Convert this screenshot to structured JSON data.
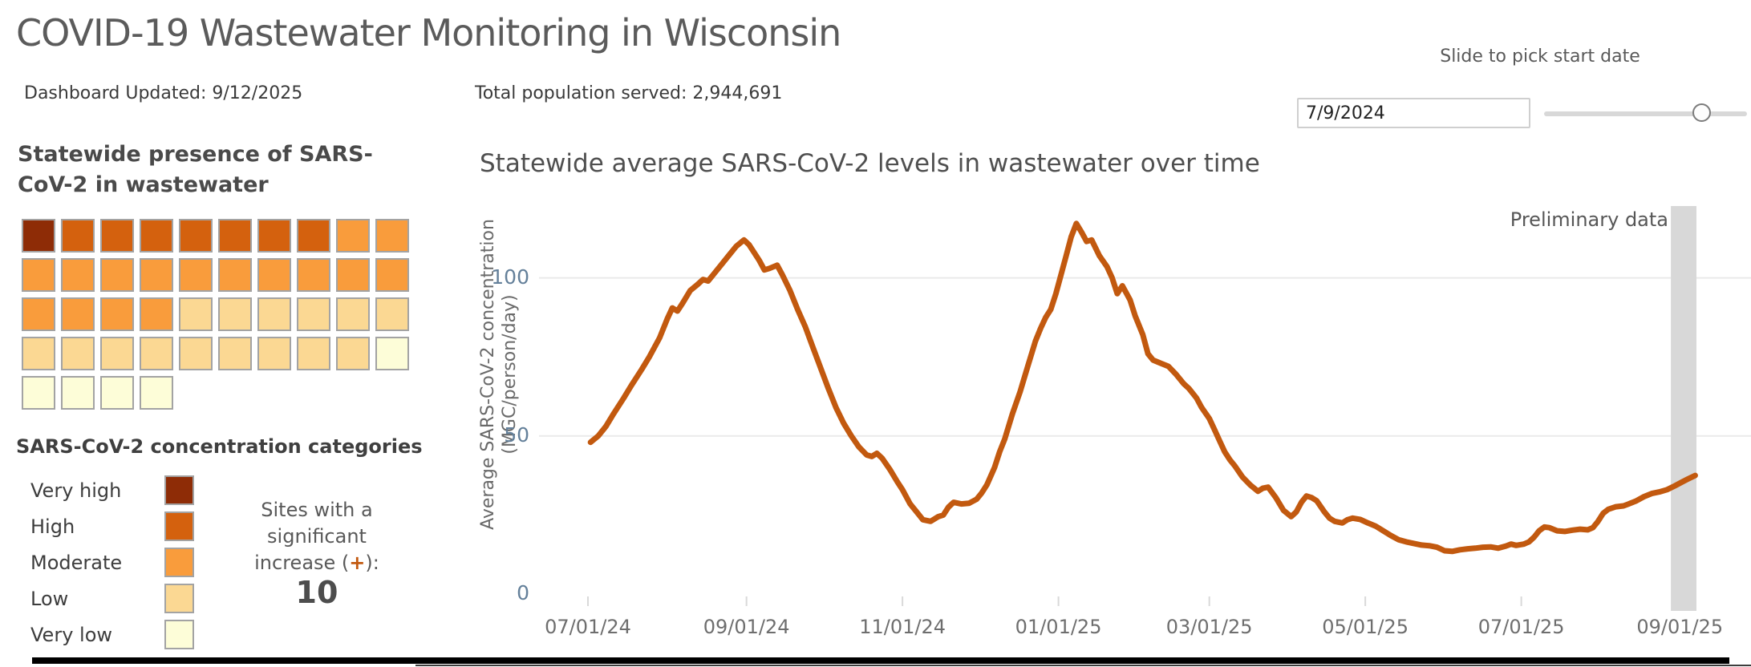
{
  "header": {
    "title": "COVID-19 Wastewater Monitoring in Wisconsin",
    "updated_label": "Dashboard Updated: 9/12/2025",
    "population_label": "Total population served: 2,944,691",
    "slider_label": "Slide to pick start date",
    "date_value": "7/9/2024"
  },
  "colors": {
    "very_high": "#8e2c06",
    "high": "#d4610e",
    "moderate": "#f99c3c",
    "low": "#fbd893",
    "very_low": "#fdfdd8",
    "line": "#c2590f",
    "grid": "#eaeaea",
    "tick": "#d9d9d9",
    "prelim_band": "#d8d8d8"
  },
  "waffle": {
    "title_line1": "Statewide presence of SARS-",
    "title_line2": "CoV-2 in wastewater",
    "rows": [
      [
        "very_high",
        "high",
        "high",
        "high",
        "high",
        "high",
        "high",
        "high",
        "moderate",
        "moderate"
      ],
      [
        "moderate",
        "moderate",
        "moderate",
        "moderate",
        "moderate",
        "moderate",
        "moderate",
        "moderate",
        "moderate",
        "moderate"
      ],
      [
        "moderate",
        "moderate",
        "moderate",
        "moderate",
        "low",
        "low",
        "low",
        "low",
        "low",
        "low"
      ],
      [
        "low",
        "low",
        "low",
        "low",
        "low",
        "low",
        "low",
        "low",
        "low",
        "very_low"
      ],
      [
        "very_low",
        "very_low",
        "very_low",
        "very_low"
      ]
    ]
  },
  "legend": {
    "title": "SARS-CoV-2 concentration categories",
    "items": [
      {
        "label": "Very high",
        "key": "very_high"
      },
      {
        "label": "High",
        "key": "high"
      },
      {
        "label": "Moderate",
        "key": "moderate"
      },
      {
        "label": "Low",
        "key": "low"
      },
      {
        "label": "Very low",
        "key": "very_low"
      }
    ],
    "sites_increase": {
      "line1": "Sites with a",
      "line2": "significant",
      "line3_pre": "increase (",
      "plus": "+",
      "line3_post": "):",
      "count": "10"
    }
  },
  "chart_data": {
    "type": "line",
    "title": "Statewide average SARS-CoV-2 levels in wastewater over time",
    "ylabel_line1": "Average SARS-CoV-2 concentration",
    "ylabel_line2": "(MGC/person/day)",
    "xlabel": "",
    "ylim": [
      0,
      122
    ],
    "grid": "horizontal",
    "y_ticks": [
      {
        "label": "0",
        "value": 0
      },
      {
        "label": "50",
        "value": 50
      },
      {
        "label": "100",
        "value": 100
      }
    ],
    "x_unit": "days since 2024-07-01",
    "x_ticks": [
      {
        "label": "07/01/24",
        "day": 0
      },
      {
        "label": "09/01/24",
        "day": 62
      },
      {
        "label": "11/01/24",
        "day": 123
      },
      {
        "label": "01/01/25",
        "day": 184
      },
      {
        "label": "03/01/25",
        "day": 243
      },
      {
        "label": "05/01/25",
        "day": 304
      },
      {
        "label": "07/01/25",
        "day": 365
      },
      {
        "label": "09/01/25",
        "day": 427
      }
    ],
    "prelim_label": "Preliminary data",
    "prelim_band_days": [
      423.5,
      433.5
    ],
    "series": [
      {
        "name": "Statewide average SARS-CoV-2 concentration",
        "color_key": "line",
        "points": [
          [
            1,
            48
          ],
          [
            4,
            50
          ],
          [
            7,
            53
          ],
          [
            10,
            57
          ],
          [
            14,
            62
          ],
          [
            17,
            66
          ],
          [
            21,
            71
          ],
          [
            24,
            75
          ],
          [
            28,
            81
          ],
          [
            31,
            87
          ],
          [
            33,
            90.5
          ],
          [
            35,
            89.5
          ],
          [
            37,
            92
          ],
          [
            40,
            96
          ],
          [
            43,
            98
          ],
          [
            45,
            99.5
          ],
          [
            47,
            99
          ],
          [
            49,
            101
          ],
          [
            52,
            104
          ],
          [
            55,
            107
          ],
          [
            58,
            110
          ],
          [
            61,
            112
          ],
          [
            63,
            110.5
          ],
          [
            65,
            108
          ],
          [
            67,
            105.5
          ],
          [
            69,
            102.5
          ],
          [
            71,
            103
          ],
          [
            74,
            104
          ],
          [
            76,
            101
          ],
          [
            79,
            96
          ],
          [
            82,
            90
          ],
          [
            85,
            84.5
          ],
          [
            88,
            78
          ],
          [
            91,
            71.5
          ],
          [
            94,
            65
          ],
          [
            97,
            59
          ],
          [
            100,
            54
          ],
          [
            103,
            50
          ],
          [
            106,
            46.5
          ],
          [
            109,
            44
          ],
          [
            111,
            43.5
          ],
          [
            113,
            44.5
          ],
          [
            115,
            43
          ],
          [
            118,
            39.5
          ],
          [
            121,
            35.5
          ],
          [
            123,
            33
          ],
          [
            126,
            28.5
          ],
          [
            129,
            25.5
          ],
          [
            131,
            23.5
          ],
          [
            134,
            23
          ],
          [
            137,
            24.5
          ],
          [
            139,
            25
          ],
          [
            141,
            27.5
          ],
          [
            143,
            29
          ],
          [
            146,
            28.5
          ],
          [
            149,
            28.7
          ],
          [
            152,
            30
          ],
          [
            154,
            32
          ],
          [
            156,
            34.5
          ],
          [
            159,
            40
          ],
          [
            161,
            45
          ],
          [
            163,
            49
          ],
          [
            166,
            57
          ],
          [
            169,
            64
          ],
          [
            172,
            72
          ],
          [
            175,
            80
          ],
          [
            177,
            84
          ],
          [
            179,
            87.5
          ],
          [
            181,
            90
          ],
          [
            183,
            95
          ],
          [
            185,
            101
          ],
          [
            187,
            107
          ],
          [
            189,
            113
          ],
          [
            191,
            117.2
          ],
          [
            193,
            114.5
          ],
          [
            195,
            111.5
          ],
          [
            197,
            112
          ],
          [
            200,
            107
          ],
          [
            203,
            103.5
          ],
          [
            205,
            100
          ],
          [
            207,
            95
          ],
          [
            209,
            97.5
          ],
          [
            212,
            93
          ],
          [
            214,
            88
          ],
          [
            217,
            82
          ],
          [
            219,
            76
          ],
          [
            221,
            74
          ],
          [
            224,
            73
          ],
          [
            227,
            72
          ],
          [
            230,
            69.5
          ],
          [
            233,
            66.5
          ],
          [
            235,
            65
          ],
          [
            238,
            62
          ],
          [
            240,
            59
          ],
          [
            243,
            55.5
          ],
          [
            245,
            52
          ],
          [
            247,
            48.5
          ],
          [
            249,
            45
          ],
          [
            251,
            42.5
          ],
          [
            253,
            40.5
          ],
          [
            256,
            37
          ],
          [
            259,
            34.5
          ],
          [
            262,
            32.5
          ],
          [
            264,
            33.5
          ],
          [
            266,
            33.8
          ],
          [
            269,
            30.5
          ],
          [
            272,
            26.5
          ],
          [
            275,
            24.5
          ],
          [
            277,
            26
          ],
          [
            279,
            29
          ],
          [
            281,
            31
          ],
          [
            283,
            30.5
          ],
          [
            285,
            29.5
          ],
          [
            288,
            26
          ],
          [
            290,
            24
          ],
          [
            292,
            23
          ],
          [
            295,
            22.5
          ],
          [
            297,
            23.5
          ],
          [
            299,
            24
          ],
          [
            302,
            23.6
          ],
          [
            305,
            22.5
          ],
          [
            308,
            21.5
          ],
          [
            311,
            20
          ],
          [
            314,
            18.5
          ],
          [
            317,
            17.2
          ],
          [
            320,
            16.5
          ],
          [
            323,
            16
          ],
          [
            326,
            15.5
          ],
          [
            329,
            15.3
          ],
          [
            332,
            14.8
          ],
          [
            335,
            13.7
          ],
          [
            338,
            13.5
          ],
          [
            341,
            14
          ],
          [
            344,
            14.3
          ],
          [
            347,
            14.5
          ],
          [
            350,
            14.8
          ],
          [
            353,
            14.9
          ],
          [
            356,
            14.5
          ],
          [
            359,
            15.2
          ],
          [
            361,
            15.8
          ],
          [
            363,
            15.4
          ],
          [
            366,
            15.8
          ],
          [
            368,
            16.5
          ],
          [
            370,
            18
          ],
          [
            372,
            20
          ],
          [
            374,
            21.2
          ],
          [
            376,
            21
          ],
          [
            379,
            20
          ],
          [
            382,
            19.8
          ],
          [
            385,
            20.2
          ],
          [
            388,
            20.5
          ],
          [
            391,
            20.3
          ],
          [
            393,
            21
          ],
          [
            395,
            23
          ],
          [
            397,
            25.5
          ],
          [
            399,
            26.8
          ],
          [
            402,
            27.6
          ],
          [
            405,
            27.9
          ],
          [
            407,
            28.5
          ],
          [
            410,
            29.5
          ],
          [
            413,
            30.8
          ],
          [
            416,
            31.8
          ],
          [
            419,
            32.3
          ],
          [
            422,
            33
          ],
          [
            425,
            34.2
          ],
          [
            428,
            35.5
          ],
          [
            430,
            36.3
          ],
          [
            433,
            37.5
          ]
        ]
      }
    ]
  }
}
